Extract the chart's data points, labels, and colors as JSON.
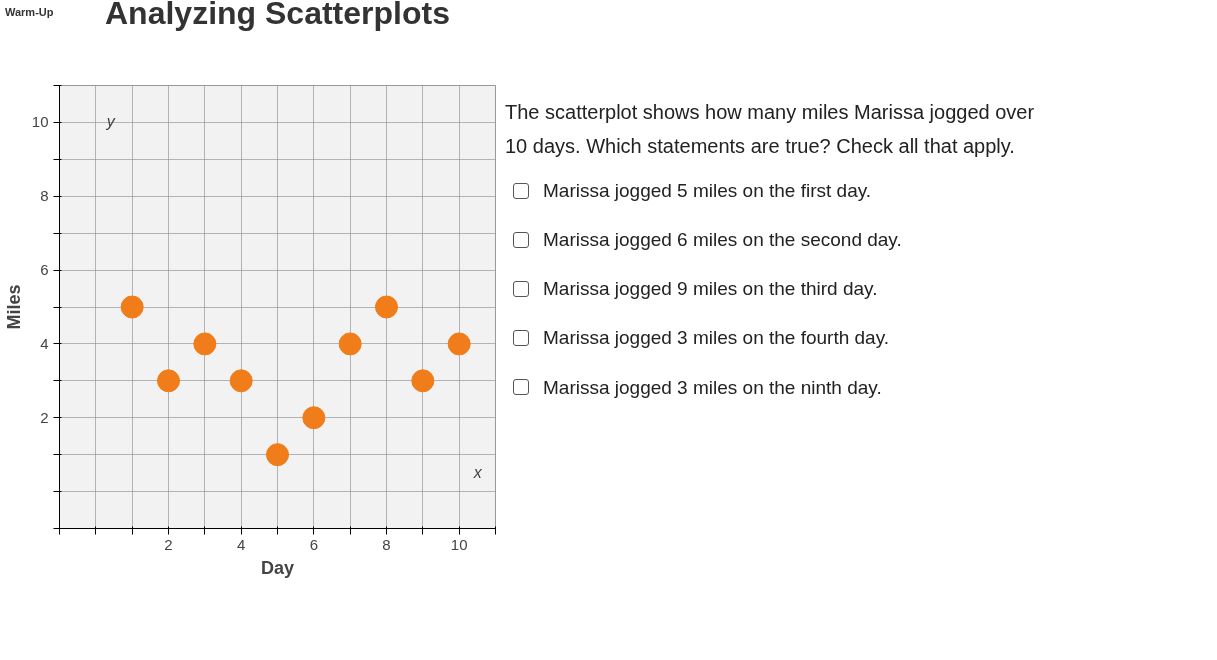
{
  "chart_data": {
    "type": "scatter",
    "title": "Analyzing Scatterplots",
    "subtitle": "Warm-Up",
    "xlabel": "Day",
    "ylabel": "Miles",
    "x": [
      1,
      2,
      3,
      4,
      5,
      6,
      7,
      8,
      9,
      10
    ],
    "series": [
      {
        "color": "#f07d1a",
        "values": [
          5,
          3,
          4,
          3,
          1,
          2,
          4,
          5,
          3,
          4
        ]
      }
    ],
    "xlim": [
      -1,
      11
    ],
    "ylim": [
      -1,
      11
    ],
    "xticks": [
      {
        "value": -1,
        "label": null
      },
      {
        "value": 0,
        "label": null
      },
      {
        "value": 1,
        "label": null
      },
      2,
      {
        "value": 3,
        "label": null
      },
      4,
      {
        "value": 5,
        "label": null
      },
      6,
      {
        "value": 7,
        "label": null
      },
      8,
      {
        "value": 9,
        "label": null
      },
      10,
      {
        "value": 11,
        "label": null
      }
    ],
    "yticks": [
      {
        "value": -1,
        "label": null
      },
      {
        "value": 0,
        "label": null
      },
      {
        "value": 1,
        "label": null
      },
      2,
      {
        "value": 3,
        "label": null
      },
      4,
      {
        "value": 5,
        "label": null
      },
      6,
      {
        "value": 7,
        "label": null
      },
      8,
      {
        "value": 9,
        "label": null
      },
      10,
      {
        "value": 11,
        "label": null
      }
    ],
    "grid": true,
    "marker": "circle",
    "annotations": [
      "x",
      "y",
      "The scatterplot shows how many miles Marissa jogged over 10 days. Which statements are true? Check all that apply.",
      "Marissa jogged 5 miles on the first day.",
      "Marissa jogged 6 miles on the second day.",
      "Marissa jogged 9 miles on the third day.",
      "Marissa jogged 3 miles on the fourth day.",
      "Marissa jogged 3 miles on the ninth day."
    ]
  }
}
